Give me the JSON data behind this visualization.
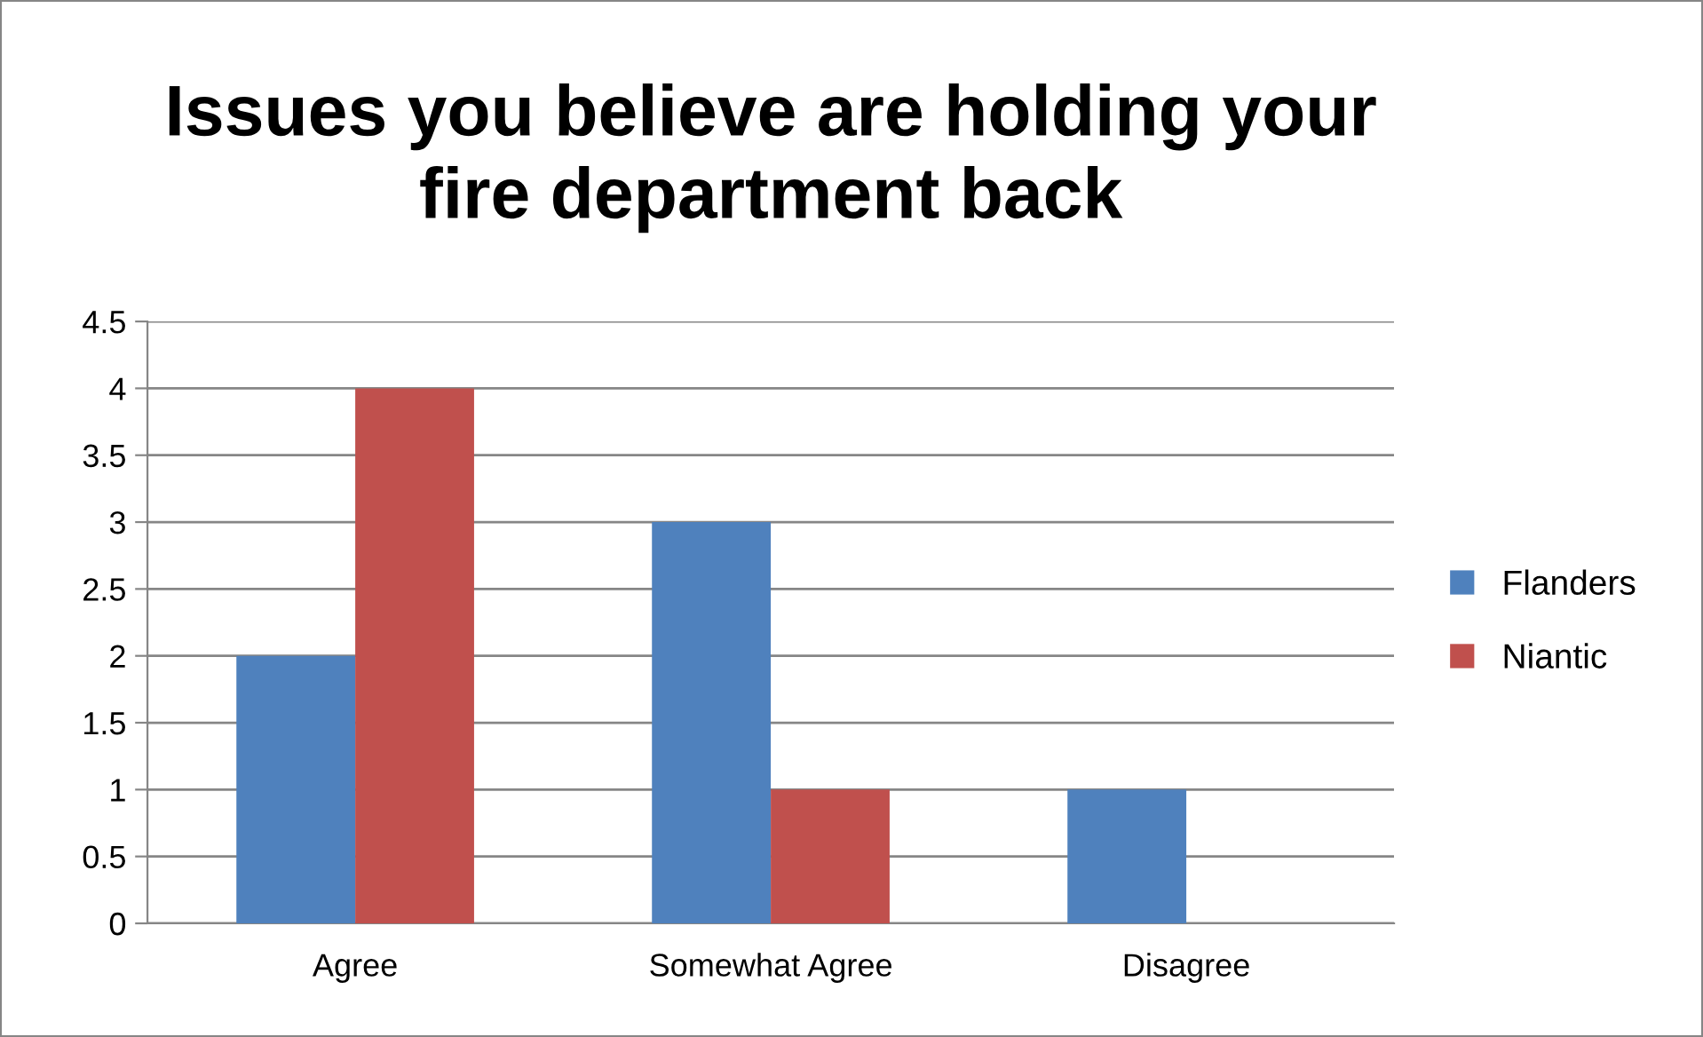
{
  "chart_data": {
    "type": "bar",
    "title": "Issues you believe are holding your\nfire department back",
    "categories": [
      "Agree",
      "Somewhat Agree",
      "Disagree"
    ],
    "series": [
      {
        "name": "Flanders",
        "color": "#4f81bd",
        "values": [
          2,
          3,
          1
        ]
      },
      {
        "name": "Niantic",
        "color": "#c0504d",
        "values": [
          4,
          1,
          0
        ]
      }
    ],
    "ylim": [
      0,
      4.5
    ],
    "yticks": [
      0,
      0.5,
      1,
      1.5,
      2,
      2.5,
      3,
      3.5,
      4,
      4.5
    ],
    "grid": "y",
    "legend": "right"
  }
}
